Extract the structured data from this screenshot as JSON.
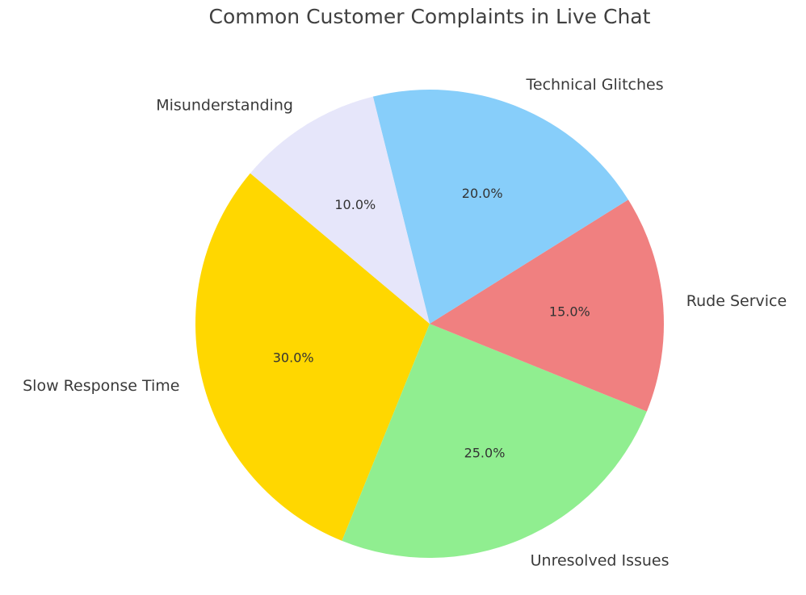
{
  "chart_data": {
    "type": "pie",
    "title": "Common Customer Complaints in Live Chat",
    "categories": [
      "Slow Response Time",
      "Unresolved Issues",
      "Rude Service",
      "Technical Glitches",
      "Misunderstanding"
    ],
    "values": [
      30,
      25,
      15,
      20,
      10
    ],
    "percent_labels": [
      "30.0%",
      "25.0%",
      "15.0%",
      "20.0%",
      "10.0%"
    ],
    "colors": [
      "#FFD700",
      "#90EE90",
      "#F08080",
      "#87CEFA",
      "#E6E6FA"
    ],
    "start_angle_deg": 140,
    "direction": "counterclockwise",
    "legend": "none"
  }
}
